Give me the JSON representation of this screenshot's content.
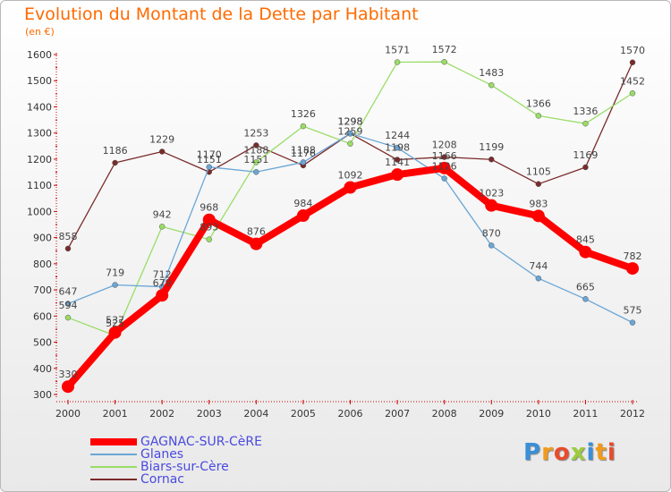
{
  "title": "Evolution du Montant de la Dette par Habitant",
  "unit": "(en €)",
  "logo": "Proxiti",
  "colors": {
    "title": "#ff6a00",
    "legend_text": "#4a4adf"
  },
  "chart_data": {
    "type": "line",
    "title": "Evolution du Montant de la Dette par Habitant",
    "subtitle": "(en €)",
    "xlabel": "",
    "ylabel": "",
    "ylim": [
      300,
      1600
    ],
    "yticks": [
      300,
      400,
      500,
      600,
      700,
      800,
      900,
      1000,
      1100,
      1200,
      1300,
      1400,
      1500,
      1600
    ],
    "grid": false,
    "legend_position": "bottom-left",
    "x": [
      "2000",
      "2001",
      "2002",
      "2003",
      "2004",
      "2005",
      "2006",
      "2007",
      "2008",
      "2009",
      "2010",
      "2011",
      "2012"
    ],
    "series": [
      {
        "name": "GAGNAC-SUR-CèRE",
        "color": "#ff0000",
        "values": [
          330,
          537,
          679,
          968,
          876,
          984,
          1092,
          1141,
          1166,
          1023,
          983,
          845,
          782
        ]
      },
      {
        "name": "Glanes",
        "color": "#6aa6d6",
        "values": [
          647,
          719,
          712,
          1170,
          1151,
          1188,
          1298,
          1244,
          1126,
          870,
          744,
          665,
          575
        ]
      },
      {
        "name": "Biars-sur-Cère",
        "color": "#99dd66",
        "values": [
          594,
          525,
          942,
          893,
          1188,
          1326,
          1259,
          1571,
          1572,
          1483,
          1366,
          1336,
          1452
        ]
      },
      {
        "name": "Cornac",
        "color": "#7a2a2a",
        "values": [
          858,
          1186,
          1229,
          1151,
          1253,
          1176,
          1298,
          1198,
          1208,
          1199,
          1105,
          1169,
          1570
        ]
      }
    ]
  }
}
